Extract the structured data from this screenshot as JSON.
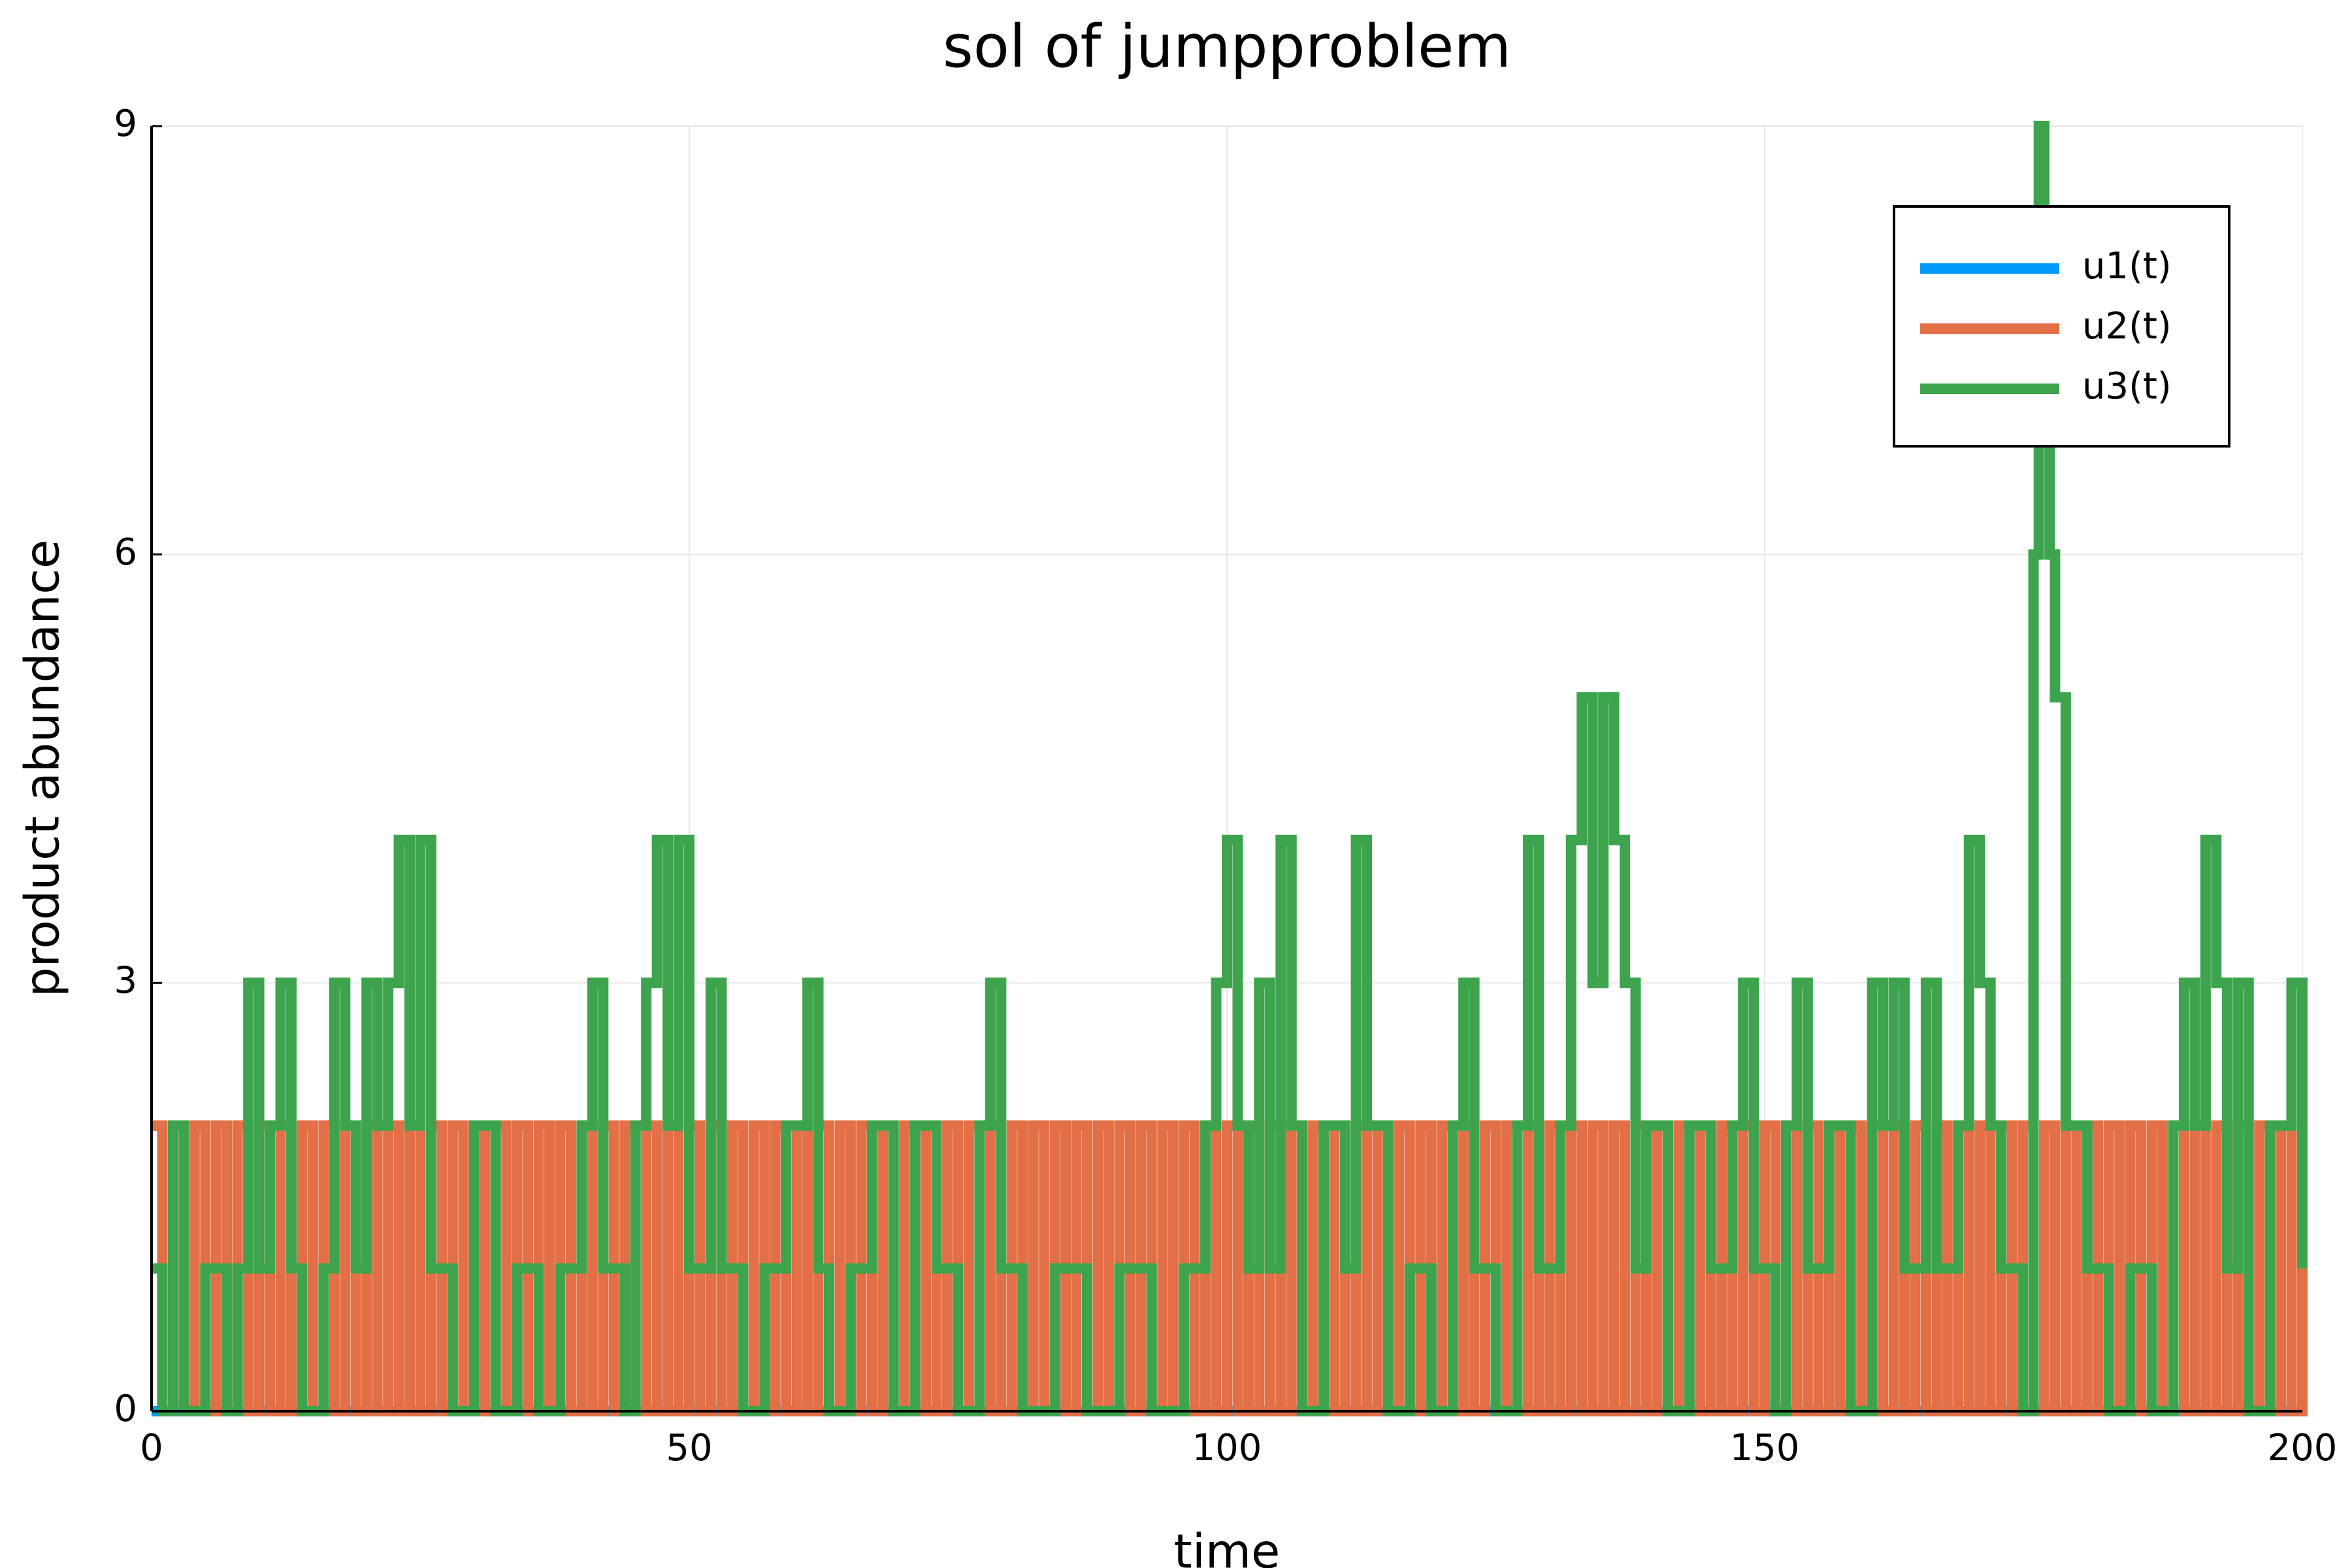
{
  "chart_data": {
    "type": "step",
    "title": "sol of jumpproblem",
    "x_label": "time",
    "y_label": "product abundance",
    "xlim": [
      0,
      200
    ],
    "ylim": [
      0,
      9
    ],
    "xticks": [
      0,
      50,
      100,
      150,
      200
    ],
    "yticks": [
      0,
      3,
      6,
      9
    ],
    "grid": true,
    "legend": "top right",
    "series": [
      {
        "name": "u1(t)",
        "color": "#009af9",
        "x": [
          0,
          200
        ],
        "values": [
          0,
          0
        ]
      },
      {
        "name": "u2(t)",
        "color": "#e26f46",
        "x": [
          0,
          1,
          2,
          3,
          4,
          5,
          6,
          7,
          8,
          9,
          10,
          11,
          12,
          13,
          14,
          15,
          16,
          17,
          18,
          19,
          20,
          21,
          22,
          23,
          24,
          25,
          26,
          27,
          28,
          29,
          30,
          31,
          32,
          33,
          34,
          35,
          36,
          37,
          38,
          39,
          40,
          41,
          42,
          43,
          44,
          45,
          46,
          47,
          48,
          49,
          50,
          51,
          52,
          53,
          54,
          55,
          56,
          57,
          58,
          59,
          60,
          61,
          62,
          63,
          64,
          65,
          66,
          67,
          68,
          69,
          70,
          71,
          72,
          73,
          74,
          75,
          76,
          77,
          78,
          79,
          80,
          81,
          82,
          83,
          84,
          85,
          86,
          87,
          88,
          89,
          90,
          91,
          92,
          93,
          94,
          95,
          96,
          97,
          98,
          99,
          100,
          101,
          102,
          103,
          104,
          105,
          106,
          107,
          108,
          109,
          110,
          111,
          112,
          113,
          114,
          115,
          116,
          117,
          118,
          119,
          120,
          121,
          122,
          123,
          124,
          125,
          126,
          127,
          128,
          129,
          130,
          131,
          132,
          133,
          134,
          135,
          136,
          137,
          138,
          139,
          140,
          141,
          142,
          143,
          144,
          145,
          146,
          147,
          148,
          149,
          150,
          151,
          152,
          153,
          154,
          155,
          156,
          157,
          158,
          159,
          160,
          161,
          162,
          163,
          164,
          165,
          166,
          167,
          168,
          169,
          170,
          171,
          172,
          173,
          174,
          175,
          176,
          177,
          178,
          179,
          180,
          181,
          182,
          183,
          184,
          185,
          186,
          187,
          188,
          189,
          190,
          191,
          192,
          193,
          194,
          195,
          196,
          197,
          198,
          199,
          200
        ],
        "values": [
          2,
          0,
          2,
          0,
          2,
          0,
          2,
          0,
          2,
          0,
          2,
          0,
          2,
          0,
          2,
          0,
          2,
          0,
          2,
          0,
          2,
          0,
          2,
          0,
          2,
          0,
          2,
          0,
          2,
          0,
          2,
          0,
          2,
          0,
          2,
          0,
          2,
          0,
          2,
          0,
          2,
          0,
          2,
          0,
          2,
          0,
          2,
          0,
          2,
          0,
          2,
          0,
          2,
          0,
          2,
          0,
          2,
          0,
          2,
          0,
          2,
          0,
          2,
          0,
          2,
          0,
          2,
          0,
          2,
          0,
          2,
          0,
          2,
          0,
          2,
          0,
          2,
          0,
          2,
          0,
          2,
          0,
          2,
          0,
          2,
          0,
          2,
          0,
          2,
          0,
          2,
          0,
          2,
          0,
          2,
          0,
          2,
          0,
          2,
          0,
          2,
          0,
          2,
          0,
          2,
          0,
          2,
          0,
          2,
          0,
          2,
          0,
          2,
          0,
          2,
          0,
          2,
          0,
          2,
          0,
          2,
          0,
          2,
          0,
          2,
          0,
          2,
          0,
          2,
          0,
          2,
          0,
          2,
          0,
          2,
          0,
          2,
          0,
          2,
          0,
          2,
          0,
          2,
          0,
          2,
          0,
          2,
          0,
          2,
          0,
          2,
          0,
          2,
          0,
          2,
          0,
          2,
          0,
          2,
          0,
          2,
          0,
          2,
          0,
          2,
          0,
          2,
          0,
          2,
          0,
          2,
          0,
          2,
          0,
          2,
          0,
          2,
          0,
          2,
          0,
          2,
          0,
          2,
          0,
          2,
          0,
          2,
          0,
          2,
          0,
          2,
          0,
          2,
          0,
          2,
          0,
          2,
          0,
          2,
          0,
          2
        ]
      },
      {
        "name": "u3(t)",
        "color": "#3da44d",
        "x": [
          0,
          1,
          2,
          3,
          5,
          7,
          8,
          9,
          10,
          11,
          12,
          13,
          14,
          16,
          17,
          18,
          19,
          20,
          21,
          22,
          23,
          24,
          25,
          26,
          28,
          30,
          32,
          34,
          36,
          38,
          40,
          41,
          42,
          44,
          45,
          46,
          47,
          48,
          49,
          50,
          52,
          53,
          55,
          57,
          59,
          61,
          62,
          63,
          65,
          67,
          69,
          71,
          73,
          75,
          77,
          78,
          79,
          81,
          84,
          87,
          90,
          93,
          96,
          98,
          99,
          100,
          101,
          102,
          103,
          104,
          105,
          106,
          107,
          109,
          111,
          112,
          113,
          115,
          117,
          119,
          121,
          122,
          123,
          125,
          127,
          128,
          129,
          131,
          132,
          133,
          134,
          135,
          136,
          137,
          138,
          139,
          141,
          143,
          145,
          147,
          148,
          149,
          151,
          152,
          153,
          154,
          156,
          158,
          160,
          161,
          162,
          163,
          165,
          166,
          168,
          169,
          170,
          171,
          172,
          174,
          175,
          175.5,
          176,
          176.5,
          177,
          178,
          180,
          182,
          184,
          186,
          188,
          189,
          190,
          191,
          192,
          193,
          194,
          195,
          197,
          199,
          200
        ],
        "values": [
          1,
          0,
          2,
          0,
          1,
          0,
          1,
          3,
          1,
          2,
          3,
          1,
          0,
          1,
          3,
          2,
          1,
          3,
          2,
          3,
          4,
          2,
          4,
          1,
          0,
          2,
          0,
          1,
          0,
          1,
          2,
          3,
          1,
          0,
          2,
          3,
          4,
          2,
          4,
          1,
          3,
          1,
          0,
          1,
          2,
          3,
          1,
          0,
          1,
          2,
          0,
          2,
          1,
          0,
          2,
          3,
          1,
          0,
          1,
          0,
          1,
          0,
          1,
          2,
          3,
          4,
          2,
          1,
          3,
          1,
          4,
          2,
          0,
          2,
          1,
          4,
          2,
          0,
          1,
          0,
          2,
          3,
          1,
          0,
          2,
          4,
          1,
          2,
          4,
          5,
          3,
          5,
          4,
          3,
          1,
          2,
          0,
          2,
          1,
          2,
          3,
          1,
          0,
          2,
          3,
          1,
          2,
          0,
          3,
          2,
          3,
          1,
          3,
          1,
          2,
          4,
          3,
          2,
          1,
          0,
          6,
          9,
          7,
          6,
          5,
          2,
          1,
          0,
          1,
          0,
          2,
          3,
          2,
          4,
          3,
          1,
          3,
          0,
          2,
          3,
          1
        ]
      }
    ]
  }
}
